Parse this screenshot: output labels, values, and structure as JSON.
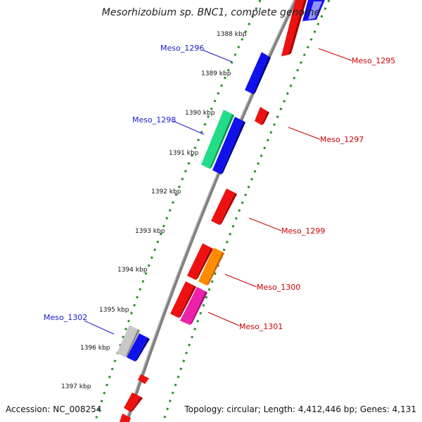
{
  "title": "Mesorhizobium sp. BNC1, complete genome",
  "accession_text": "Accession: NC_008254",
  "topology_text": "Topology: circular; Length: 4,412,446 bp; Genes: 4,131",
  "tick_labels": [
    "1388 kbp",
    "1389 kbp",
    "1390 kbp",
    "1391 kbp",
    "1392 kbp",
    "1393 kbp",
    "1394 kbp",
    "1395 kbp",
    "1396 kbp",
    "1397 kbp"
  ],
  "gene_labels": {
    "meso_1295": "Meso_1295",
    "meso_1296": "Meso_1296",
    "meso_1297": "Meso_1297",
    "meso_1298": "Meso_1298",
    "meso_1299": "Meso_1299",
    "meso_1300": "Meso_1300",
    "meso_1301": "Meso_1301",
    "meso_1302": "Meso_1302"
  },
  "colors": {
    "forward_label": "#cc0000",
    "reverse_label": "#1a1acc",
    "backbone": "#808080",
    "tick_marks": "#2e8b2e",
    "gene_red": "#ee1111",
    "gene_blue": "#1111ee",
    "gene_green": "#22dd88",
    "gene_orange": "#ff8c00",
    "gene_pink": "#ee22aa",
    "gene_grey": "#c8c8c8"
  }
}
